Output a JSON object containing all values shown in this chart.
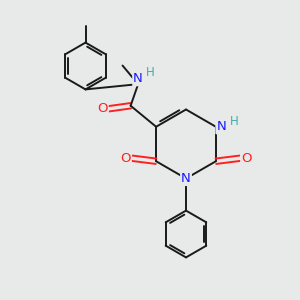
{
  "bg_color": "#e8eaea",
  "bond_color": "#1a1a1a",
  "N_color": "#1a1aff",
  "O_color": "#ff2020",
  "H_color": "#3aafa9",
  "figsize": [
    3.0,
    3.0
  ],
  "dpi": 100,
  "xlim": [
    0,
    10
  ],
  "ylim": [
    0,
    10
  ]
}
